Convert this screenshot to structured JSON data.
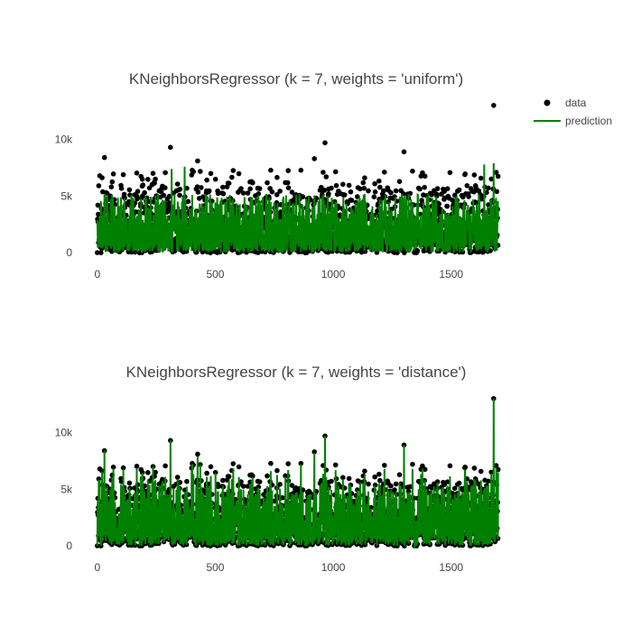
{
  "legend": {
    "items": [
      {
        "label": "data",
        "symbol": "marker",
        "color": "#000000"
      },
      {
        "label": "prediction",
        "symbol": "line",
        "color": "#008000"
      }
    ]
  },
  "chart_data": [
    {
      "type": "scatter",
      "title": "KNeighborsRegressor (k = 7, weights = 'uniform')",
      "xlim": [
        -30,
        1700
      ],
      "ylim": [
        -300,
        13300
      ],
      "x_ticks": [
        0,
        500,
        1000,
        1500
      ],
      "y_ticks": [
        0,
        5000,
        10000
      ],
      "x_tick_labels": [
        "0",
        "500",
        "1000",
        "1500"
      ],
      "y_tick_labels": [
        "0",
        "5k",
        "10k"
      ],
      "grid": false,
      "legend_position": "top-right",
      "n_points": 1700,
      "series": [
        {
          "name": "data",
          "mode": "markers",
          "color": "#000000",
          "notable_points": [
            {
              "x": 30,
              "y": 8400
            },
            {
              "x": 310,
              "y": 9300
            },
            {
              "x": 425,
              "y": 8100
            },
            {
              "x": 920,
              "y": 8300
            },
            {
              "x": 965,
              "y": 9700
            },
            {
              "x": 1300,
              "y": 8900
            },
            {
              "x": 1680,
              "y": 13000
            }
          ],
          "typical_range": [
            0,
            6500
          ]
        },
        {
          "name": "prediction",
          "mode": "lines",
          "color": "#008000",
          "peaks": [
            {
              "x": 315,
              "y": 7400
            },
            {
              "x": 370,
              "y": 7600
            },
            {
              "x": 1640,
              "y": 7800
            },
            {
              "x": 1680,
              "y": 7900
            }
          ],
          "typical_range": [
            0,
            5000
          ]
        }
      ]
    },
    {
      "type": "scatter",
      "title": "KNeighborsRegressor (k = 7, weights = 'distance')",
      "xlim": [
        -30,
        1700
      ],
      "ylim": [
        -300,
        13300
      ],
      "x_ticks": [
        0,
        500,
        1000,
        1500
      ],
      "y_ticks": [
        0,
        5000,
        10000
      ],
      "x_tick_labels": [
        "0",
        "500",
        "1000",
        "1500"
      ],
      "y_tick_labels": [
        "0",
        "5k",
        "10k"
      ],
      "grid": false,
      "n_points": 1700,
      "series": [
        {
          "name": "data",
          "mode": "markers",
          "color": "#000000",
          "notable_points": [
            {
              "x": 30,
              "y": 8400
            },
            {
              "x": 310,
              "y": 9300
            },
            {
              "x": 425,
              "y": 8100
            },
            {
              "x": 920,
              "y": 8300
            },
            {
              "x": 965,
              "y": 9700
            },
            {
              "x": 1300,
              "y": 8900
            },
            {
              "x": 1680,
              "y": 13000
            }
          ],
          "typical_range": [
            0,
            6500
          ]
        },
        {
          "name": "prediction",
          "mode": "lines",
          "color": "#008000",
          "peaks": [
            {
              "x": 30,
              "y": 8400
            },
            {
              "x": 310,
              "y": 9300
            },
            {
              "x": 965,
              "y": 9700
            },
            {
              "x": 1300,
              "y": 8900
            },
            {
              "x": 1680,
              "y": 13000
            }
          ],
          "typical_range": [
            0,
            6500
          ]
        }
      ]
    }
  ]
}
